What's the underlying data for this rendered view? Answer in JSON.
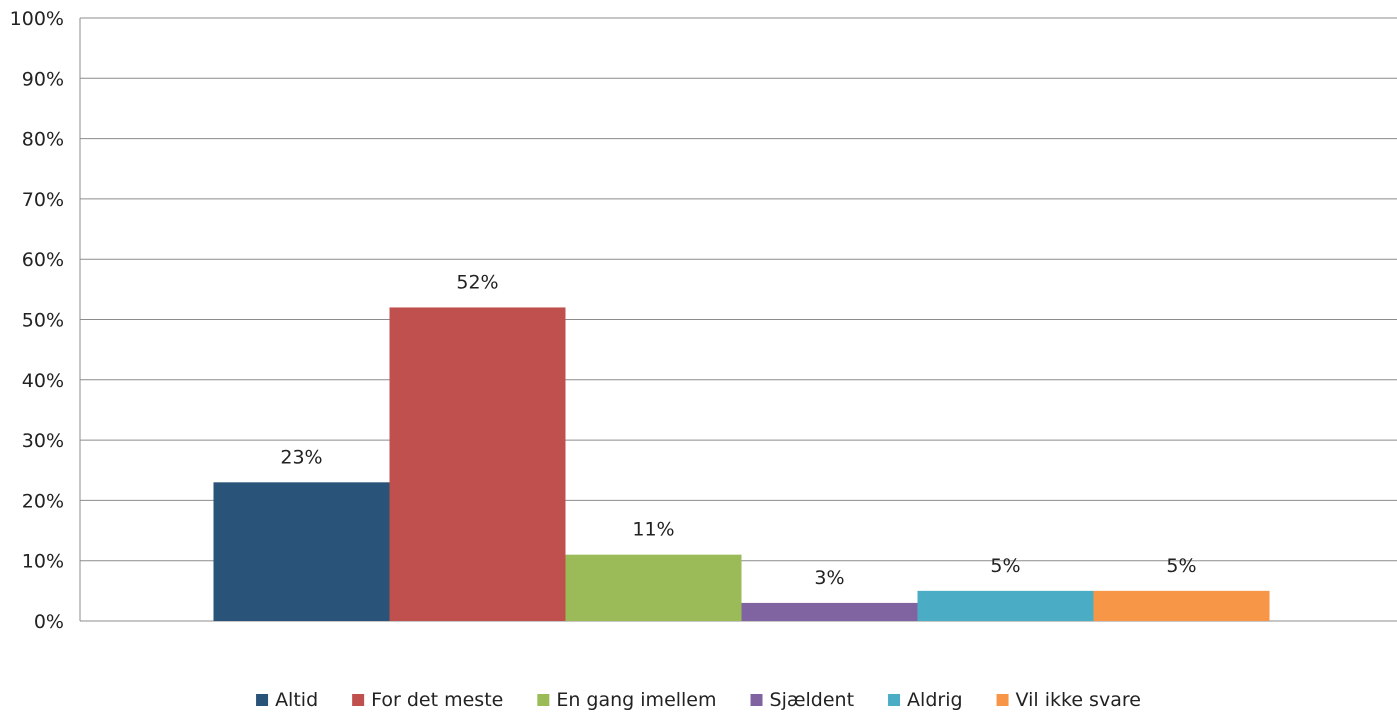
{
  "chart_data": {
    "type": "bar",
    "title": "",
    "xlabel": "",
    "ylabel": "",
    "ylim": [
      0,
      100
    ],
    "y_ticks": [
      "0%",
      "10%",
      "20%",
      "30%",
      "40%",
      "50%",
      "60%",
      "70%",
      "80%",
      "90%",
      "100%"
    ],
    "y_tick_values": [
      0,
      10,
      20,
      30,
      40,
      50,
      60,
      70,
      80,
      90,
      100
    ],
    "grid": true,
    "legend": "bottom",
    "categories": [
      ""
    ],
    "series": [
      {
        "name": "Altid",
        "values": [
          23
        ],
        "label": "23%",
        "color": "#2a5379"
      },
      {
        "name": "For det meste",
        "values": [
          52
        ],
        "label": "52%",
        "color": "#c0504d"
      },
      {
        "name": "En gang imellem",
        "values": [
          11
        ],
        "label": "11%",
        "color": "#9bbb59"
      },
      {
        "name": "Sjældent",
        "values": [
          3
        ],
        "label": "3%",
        "color": "#8064a2"
      },
      {
        "name": "Aldrig",
        "values": [
          5
        ],
        "label": "5%",
        "color": "#4bacc6"
      },
      {
        "name": "Vil ikke svare",
        "values": [
          5
        ],
        "label": "5%",
        "color": "#f79646"
      }
    ]
  }
}
